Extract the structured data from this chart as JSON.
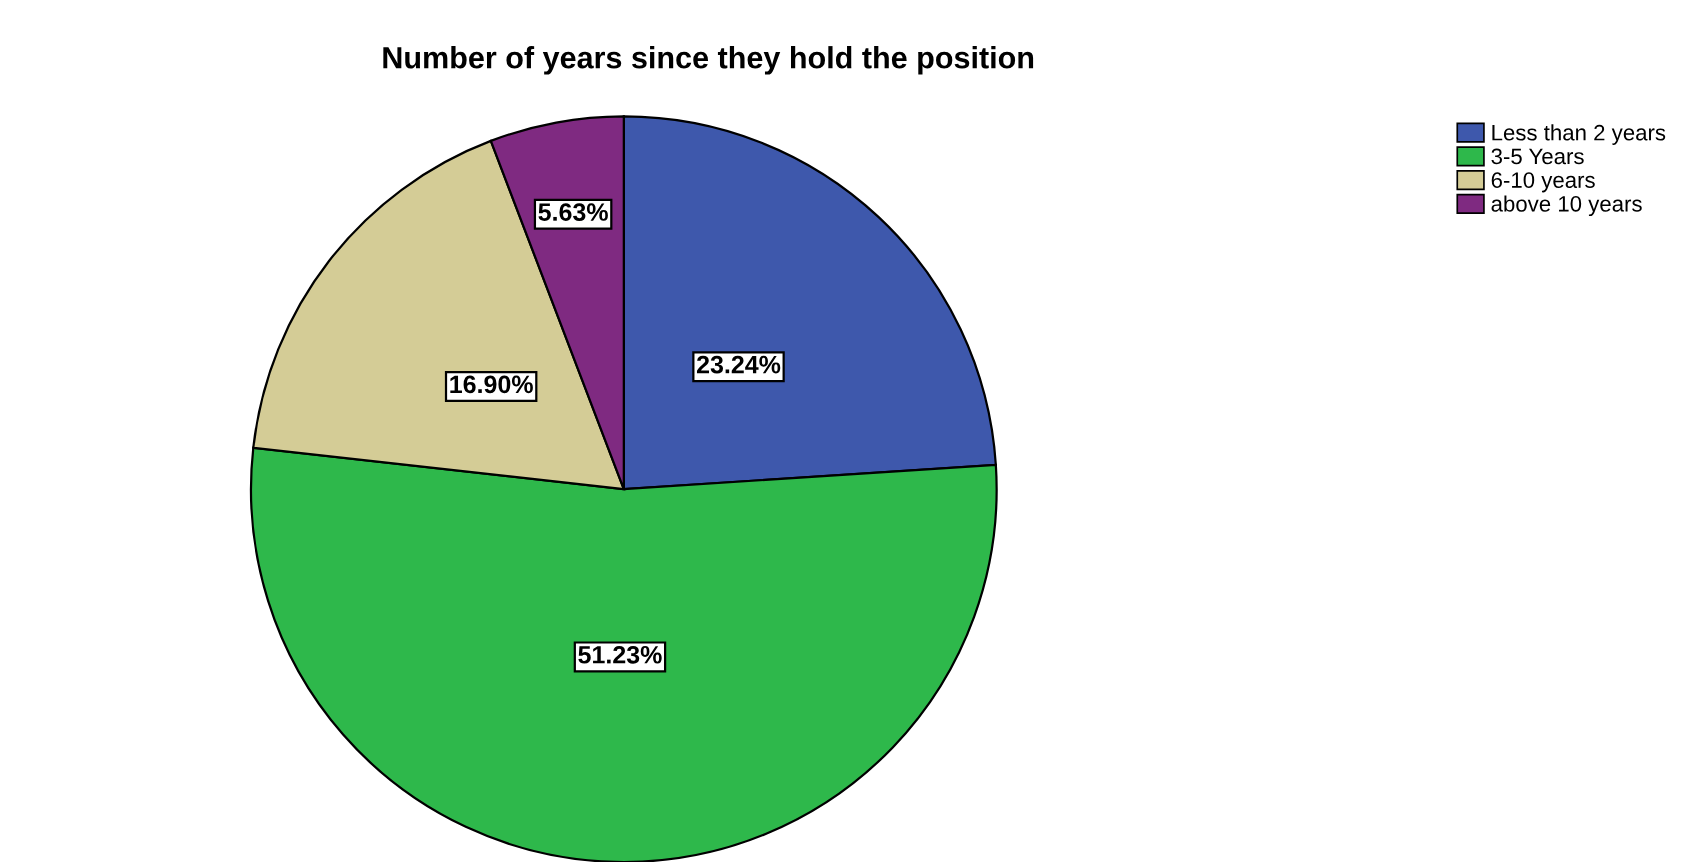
{
  "chart_data": {
    "type": "pie",
    "title": "Number of years since they hold the position",
    "categories": [
      "Less than 2 years",
      "3-5 Years",
      "6-10 years",
      "above 10 years"
    ],
    "values": [
      23.24,
      51.23,
      16.9,
      5.63
    ],
    "value_labels": [
      "23.24%",
      "51.23%",
      "16.90%",
      "5.63%"
    ],
    "colors": [
      "#3e58ac",
      "#2eb84b",
      "#d4cc96",
      "#7f2a81"
    ],
    "legend": "top right"
  }
}
